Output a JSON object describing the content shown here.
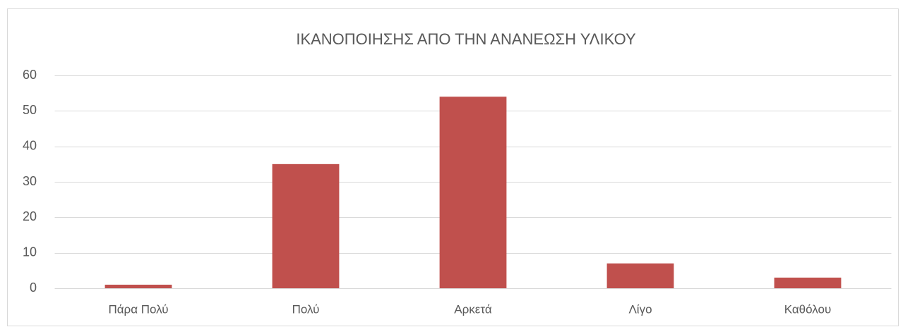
{
  "chart_data": {
    "type": "bar",
    "title": "ΙΚΑΝΟΠΟΙΗΣΗΣ ΑΠΟ ΤΗΝ ΑΝΑΝΕΩΣΗ ΥΛΙΚΟΥ",
    "categories": [
      "Πάρα Πολύ",
      "Πολύ",
      "Αρκετά",
      "Λίγο",
      "Καθόλου"
    ],
    "values": [
      1,
      35,
      54,
      7,
      3
    ],
    "color": "#c0504d",
    "ylim": [
      0,
      60
    ],
    "yticks": [
      0,
      10,
      20,
      30,
      40,
      50,
      60
    ],
    "grid": true
  }
}
